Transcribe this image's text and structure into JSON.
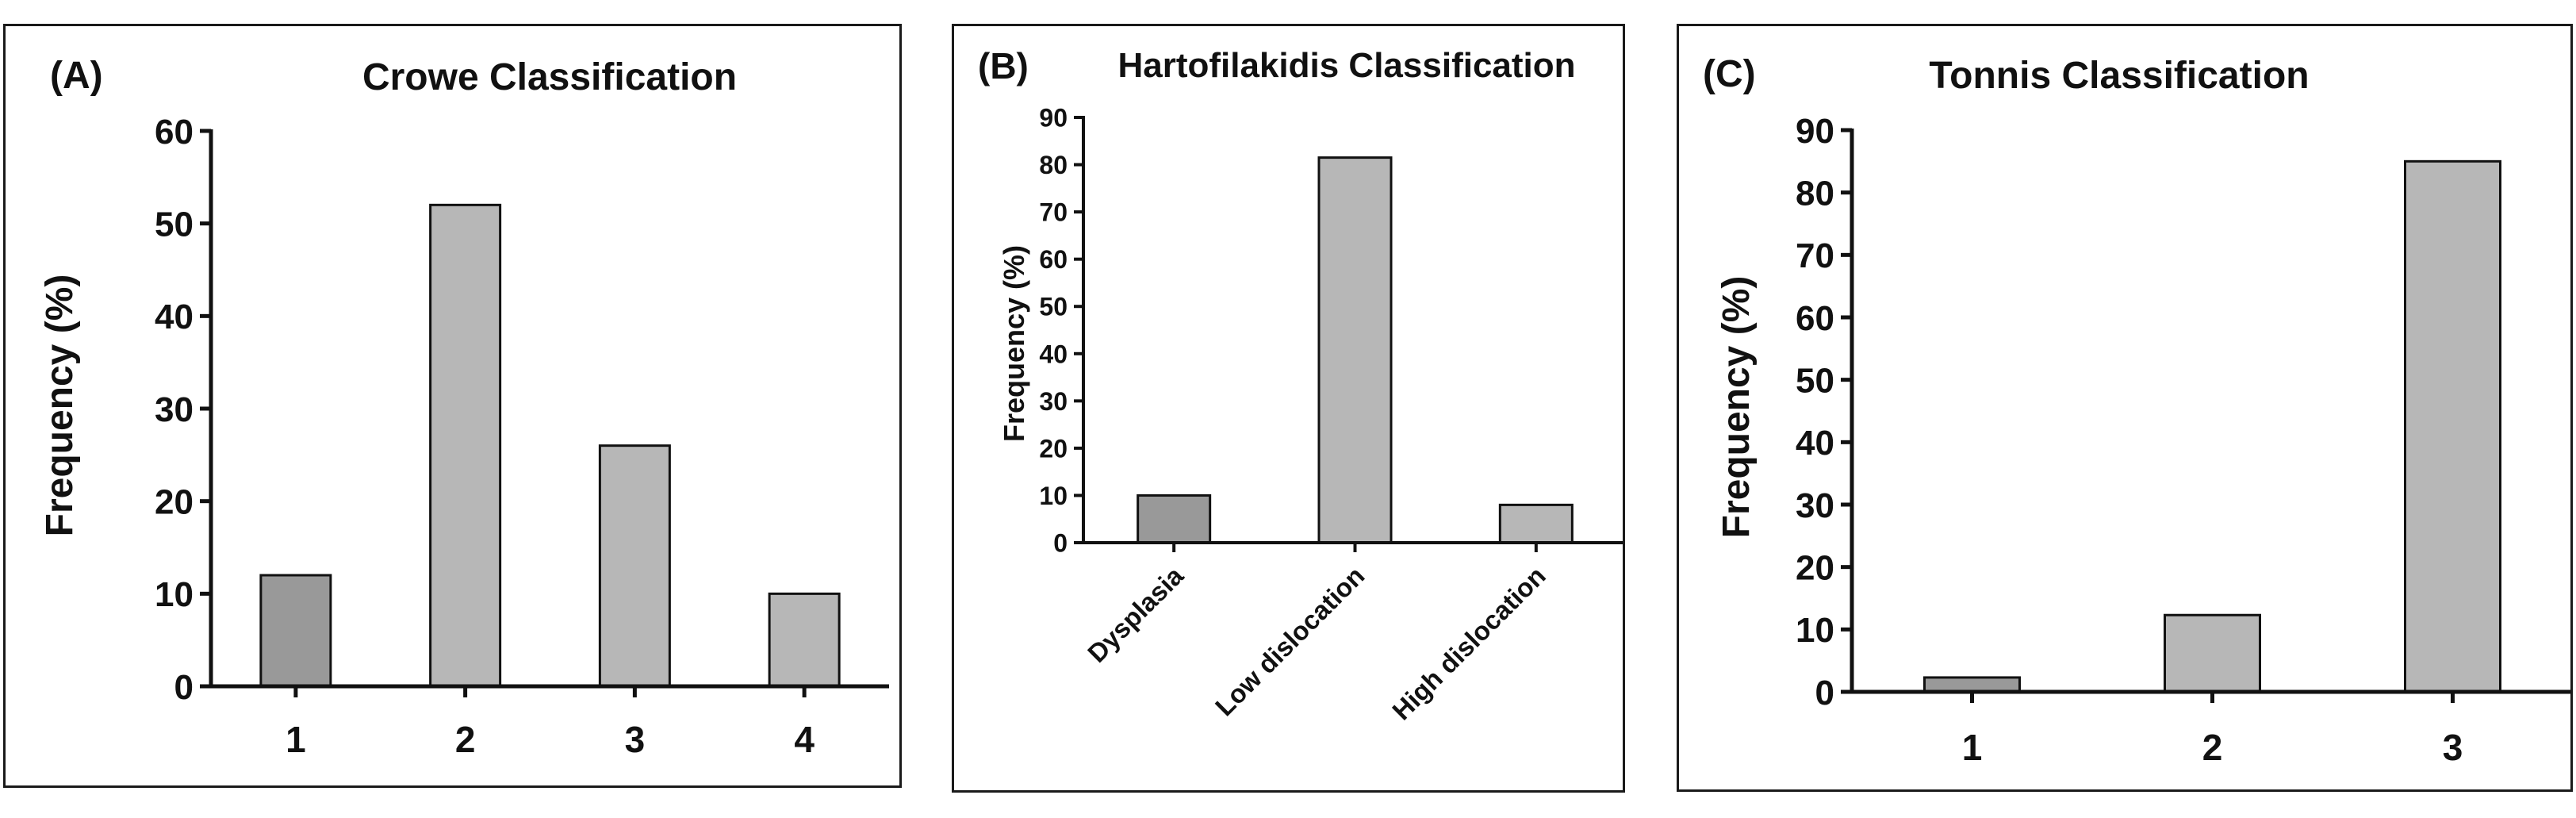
{
  "panels": [
    {
      "letter": "(A)",
      "chart_data": {
        "type": "bar",
        "title": "Crowe Classification",
        "xlabel": "",
        "ylabel": "Frequency (%)",
        "categories": [
          "1",
          "2",
          "3",
          "4"
        ],
        "values": [
          12,
          52,
          26,
          10
        ],
        "ylim": [
          0,
          60
        ],
        "yticks": [
          0,
          10,
          20,
          30,
          40,
          50,
          60
        ],
        "grid": false,
        "legend": "none"
      },
      "colors": {
        "first_bar": "#999999",
        "other_bars": "#b7b7b7"
      }
    },
    {
      "letter": "(B)",
      "chart_data": {
        "type": "bar",
        "title": "Hartofilakidis Classification",
        "xlabel": "",
        "ylabel": "Frequency (%)",
        "categories": [
          "Dysplasia",
          "Low dislocation",
          "High dislocation"
        ],
        "values": [
          10,
          81.5,
          8
        ],
        "ylim": [
          0,
          90
        ],
        "yticks": [
          0,
          10,
          20,
          30,
          40,
          50,
          60,
          70,
          80,
          90
        ],
        "grid": false,
        "legend": "none"
      },
      "colors": {
        "first_bar": "#999999",
        "other_bars": "#b7b7b7"
      }
    },
    {
      "letter": "(C)",
      "chart_data": {
        "type": "bar",
        "title": "Tonnis Classification",
        "xlabel": "",
        "ylabel": "Frequency (%)",
        "categories": [
          "1",
          "2",
          "3"
        ],
        "values": [
          2.3,
          12.3,
          85
        ],
        "ylim": [
          0,
          90
        ],
        "yticks": [
          0,
          10,
          20,
          30,
          40,
          50,
          60,
          70,
          80,
          90
        ],
        "grid": false,
        "legend": "none"
      },
      "colors": {
        "first_bar": "#999999",
        "other_bars": "#b7b7b7"
      }
    }
  ]
}
